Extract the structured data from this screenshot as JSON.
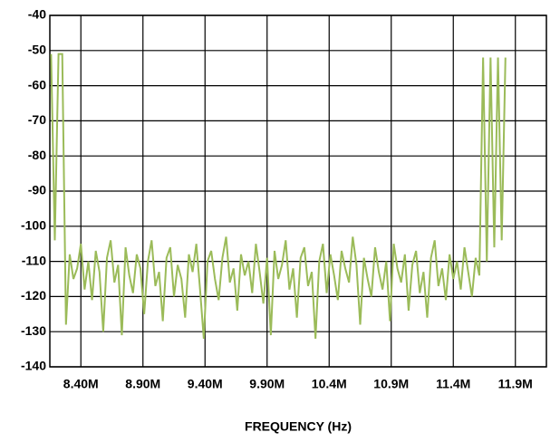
{
  "chart_data": {
    "type": "line",
    "x_label": "FREQUENCY (Hz)",
    "x": [
      8.16,
      8.19,
      8.22,
      8.25,
      8.28,
      8.31,
      8.34,
      8.37,
      8.4,
      8.43,
      8.46,
      8.49,
      8.52,
      8.55,
      8.58,
      8.61,
      8.64,
      8.67,
      8.7,
      8.73,
      8.76,
      8.79,
      8.82,
      8.85,
      8.88,
      8.91,
      8.94,
      8.97,
      9.0,
      9.03,
      9.06,
      9.09,
      9.12,
      9.15,
      9.18,
      9.21,
      9.24,
      9.27,
      9.3,
      9.33,
      9.36,
      9.39,
      9.42,
      9.45,
      9.48,
      9.51,
      9.54,
      9.57,
      9.6,
      9.63,
      9.66,
      9.69,
      9.72,
      9.75,
      9.78,
      9.81,
      9.84,
      9.87,
      9.9,
      9.93,
      9.96,
      9.99,
      10.02,
      10.05,
      10.08,
      10.11,
      10.14,
      10.17,
      10.2,
      10.23,
      10.26,
      10.29,
      10.32,
      10.35,
      10.38,
      10.41,
      10.44,
      10.47,
      10.5,
      10.53,
      10.56,
      10.59,
      10.62,
      10.65,
      10.68,
      10.71,
      10.74,
      10.77,
      10.8,
      10.83,
      10.86,
      10.89,
      10.92,
      10.95,
      10.98,
      11.01,
      11.04,
      11.07,
      11.1,
      11.13,
      11.16,
      11.19,
      11.22,
      11.25,
      11.28,
      11.31,
      11.34,
      11.37,
      11.4,
      11.43,
      11.46,
      11.49,
      11.52,
      11.55,
      11.58,
      11.61,
      11.64,
      11.67,
      11.7,
      11.73,
      11.76,
      11.79,
      11.82
    ],
    "series": [
      {
        "color": "#9bbb59",
        "values": [
          -51,
          -104,
          -51,
          -51,
          -128,
          -108,
          -115,
          -112,
          -105,
          -118,
          -110,
          -121,
          -107,
          -113,
          -130,
          -109,
          -104,
          -116,
          -111,
          -131,
          -106,
          -114,
          -119,
          -108,
          -112,
          -125,
          -110,
          -104,
          -117,
          -113,
          -127,
          -109,
          -106,
          -120,
          -111,
          -115,
          -126,
          -108,
          -113,
          -105,
          -118,
          -132,
          -110,
          -107,
          -115,
          -121,
          -109,
          -103,
          -116,
          -112,
          -124,
          -108,
          -114,
          -110,
          -119,
          -105,
          -113,
          -122,
          -109,
          -131,
          -107,
          -115,
          -111,
          -104,
          -118,
          -112,
          -126,
          -109,
          -106,
          -117,
          -113,
          -132,
          -110,
          -105,
          -119,
          -108,
          -114,
          -121,
          -107,
          -112,
          -116,
          -103,
          -111,
          -128,
          -109,
          -115,
          -120,
          -106,
          -113,
          -118,
          -110,
          -127,
          -105,
          -112,
          -116,
          -108,
          -124,
          -111,
          -107,
          -119,
          -113,
          -126,
          -109,
          -104,
          -117,
          -112,
          -121,
          -108,
          -115,
          -110,
          -118,
          -106,
          -113,
          -120,
          -109,
          -114,
          -52,
          -110,
          -52,
          -106,
          -52,
          -104,
          -52
        ]
      }
    ],
    "xlim": [
      8.15,
      12.15
    ],
    "xticks": [
      {
        "value": 8.4,
        "label": "8.40M"
      },
      {
        "value": 8.9,
        "label": "8.90M"
      },
      {
        "value": 9.4,
        "label": "9.40M"
      },
      {
        "value": 9.9,
        "label": "9.90M"
      },
      {
        "value": 10.4,
        "label": "10.4M"
      },
      {
        "value": 10.9,
        "label": "10.9M"
      },
      {
        "value": 11.4,
        "label": "11.4M"
      },
      {
        "value": 11.9,
        "label": "11.9M"
      }
    ],
    "ylim": [
      -140,
      -40
    ],
    "yticks": [
      -140,
      -130,
      -120,
      -110,
      -100,
      -90,
      -80,
      -70,
      -60,
      -50,
      -40
    ],
    "grid": true
  }
}
